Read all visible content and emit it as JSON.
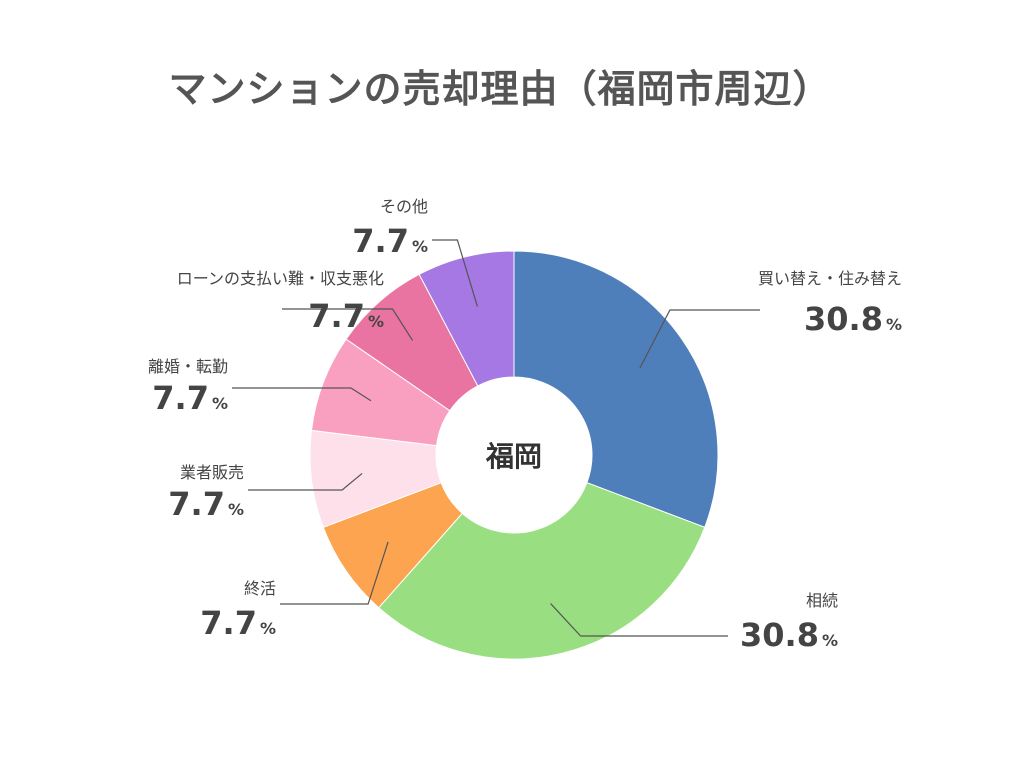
{
  "chart_data": {
    "type": "pie",
    "title": "マンションの売却理由（福岡市周辺）",
    "center_label": "福岡",
    "unit": "%",
    "slices": [
      {
        "label": "買い替え・住み替え",
        "value": 30.8,
        "color": "#4f7fbb"
      },
      {
        "label": "相続",
        "value": 30.8,
        "color": "#99df82"
      },
      {
        "label": "終活",
        "value": 7.7,
        "color": "#fca450"
      },
      {
        "label": "業者販売",
        "value": 7.7,
        "color": "#fde0ea"
      },
      {
        "label": "離婚・転勤",
        "value": 7.7,
        "color": "#f9a0c1"
      },
      {
        "label": "ローンの支払い難・収支悪化",
        "value": 7.7,
        "color": "#ea74a1"
      },
      {
        "label": "その他",
        "value": 7.7,
        "color": "#a578e3"
      }
    ]
  }
}
